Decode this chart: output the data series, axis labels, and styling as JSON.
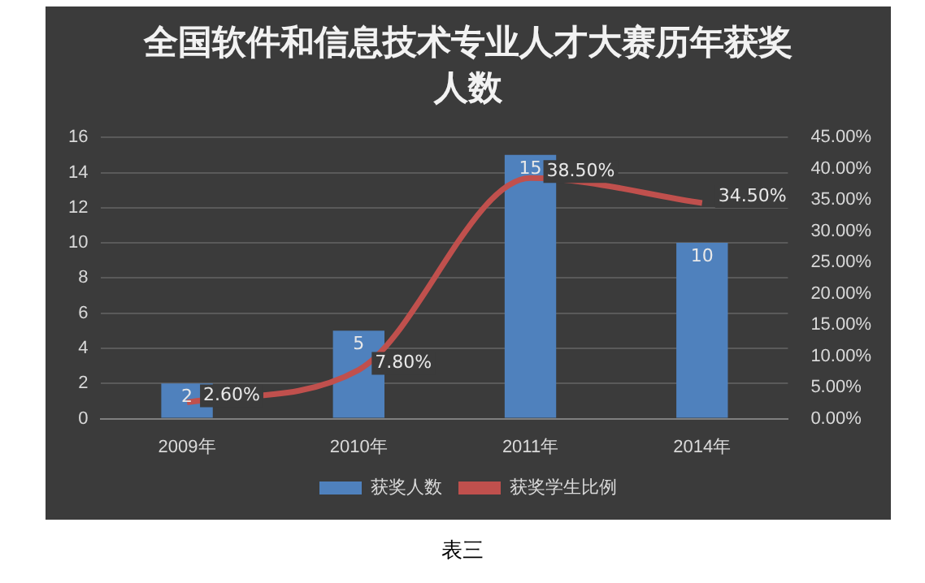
{
  "chart_data": {
    "type": "bar",
    "title": "全国软件和信息技术专业人才大赛历年获奖人数",
    "categories": [
      "2009年",
      "2010年",
      "2011年",
      "2014年"
    ],
    "series": [
      {
        "name": "获奖人数",
        "color": "#4f81bd",
        "values": [
          2,
          5,
          15,
          10
        ],
        "value_labels": [
          "2",
          "5",
          "15",
          "10"
        ]
      },
      {
        "name": "获奖学生比例",
        "type": "line",
        "axis": "y2",
        "color": "#c0504d",
        "values": [
          2.6,
          7.8,
          38.5,
          34.5
        ],
        "value_labels": [
          "2.60%",
          "7.80%",
          "38.50%",
          "34.50%"
        ]
      }
    ],
    "ylim": [
      0,
      16
    ],
    "yticks": [
      0,
      2,
      4,
      6,
      8,
      10,
      12,
      14,
      16
    ],
    "y2lim": [
      0,
      45
    ],
    "y2ticks": [
      {
        "value": 0,
        "label": "0.00%"
      },
      {
        "value": 5,
        "label": "5.00%"
      },
      {
        "value": 10,
        "label": "10.00%"
      },
      {
        "value": 15,
        "label": "15.00%"
      },
      {
        "value": 20,
        "label": "20.00%"
      },
      {
        "value": 25,
        "label": "25.00%"
      },
      {
        "value": 30,
        "label": "30.00%"
      },
      {
        "value": 35,
        "label": "35.00%"
      },
      {
        "value": 40,
        "label": "40.00%"
      },
      {
        "value": 45,
        "label": "45.00%"
      }
    ],
    "grid": "y",
    "legend": "bottom",
    "marker": "none",
    "line_style": "solid",
    "annotations": [
      "表三"
    ]
  }
}
